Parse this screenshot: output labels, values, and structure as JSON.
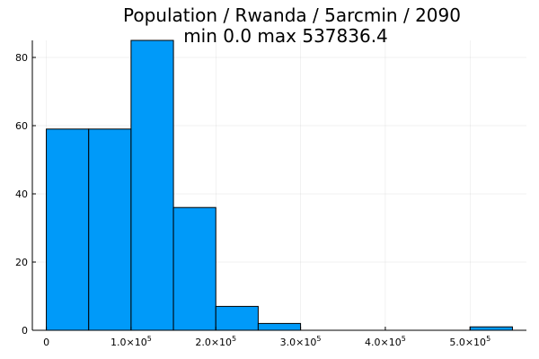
{
  "chart_data": {
    "type": "bar",
    "title": "Population / Rwanda / 5arcmin / 2090",
    "subtitle": "min 0.0  max 537836.4",
    "xlabel": "",
    "ylabel": "",
    "bins": [
      {
        "start": 0,
        "end": 50000,
        "count": 59
      },
      {
        "start": 50000,
        "end": 100000,
        "count": 59
      },
      {
        "start": 100000,
        "end": 150000,
        "count": 85
      },
      {
        "start": 150000,
        "end": 200000,
        "count": 36
      },
      {
        "start": 200000,
        "end": 250000,
        "count": 7
      },
      {
        "start": 250000,
        "end": 300000,
        "count": 2
      },
      {
        "start": 500000,
        "end": 550000,
        "count": 1
      }
    ],
    "xlim": [
      -16500,
      566500
    ],
    "ylim": [
      0,
      85
    ],
    "x_ticks": [
      {
        "value": 0,
        "label": "0",
        "exp": ""
      },
      {
        "value": 100000,
        "label": "1.0×10",
        "exp": "5"
      },
      {
        "value": 200000,
        "label": "2.0×10",
        "exp": "5"
      },
      {
        "value": 300000,
        "label": "3.0×10",
        "exp": "5"
      },
      {
        "value": 400000,
        "label": "4.0×10",
        "exp": "5"
      },
      {
        "value": 500000,
        "label": "5.0×10",
        "exp": "5"
      }
    ],
    "y_ticks": [
      0,
      20,
      40,
      60,
      80
    ],
    "grid": true,
    "legend": "none",
    "bar_color": "#009af9"
  }
}
